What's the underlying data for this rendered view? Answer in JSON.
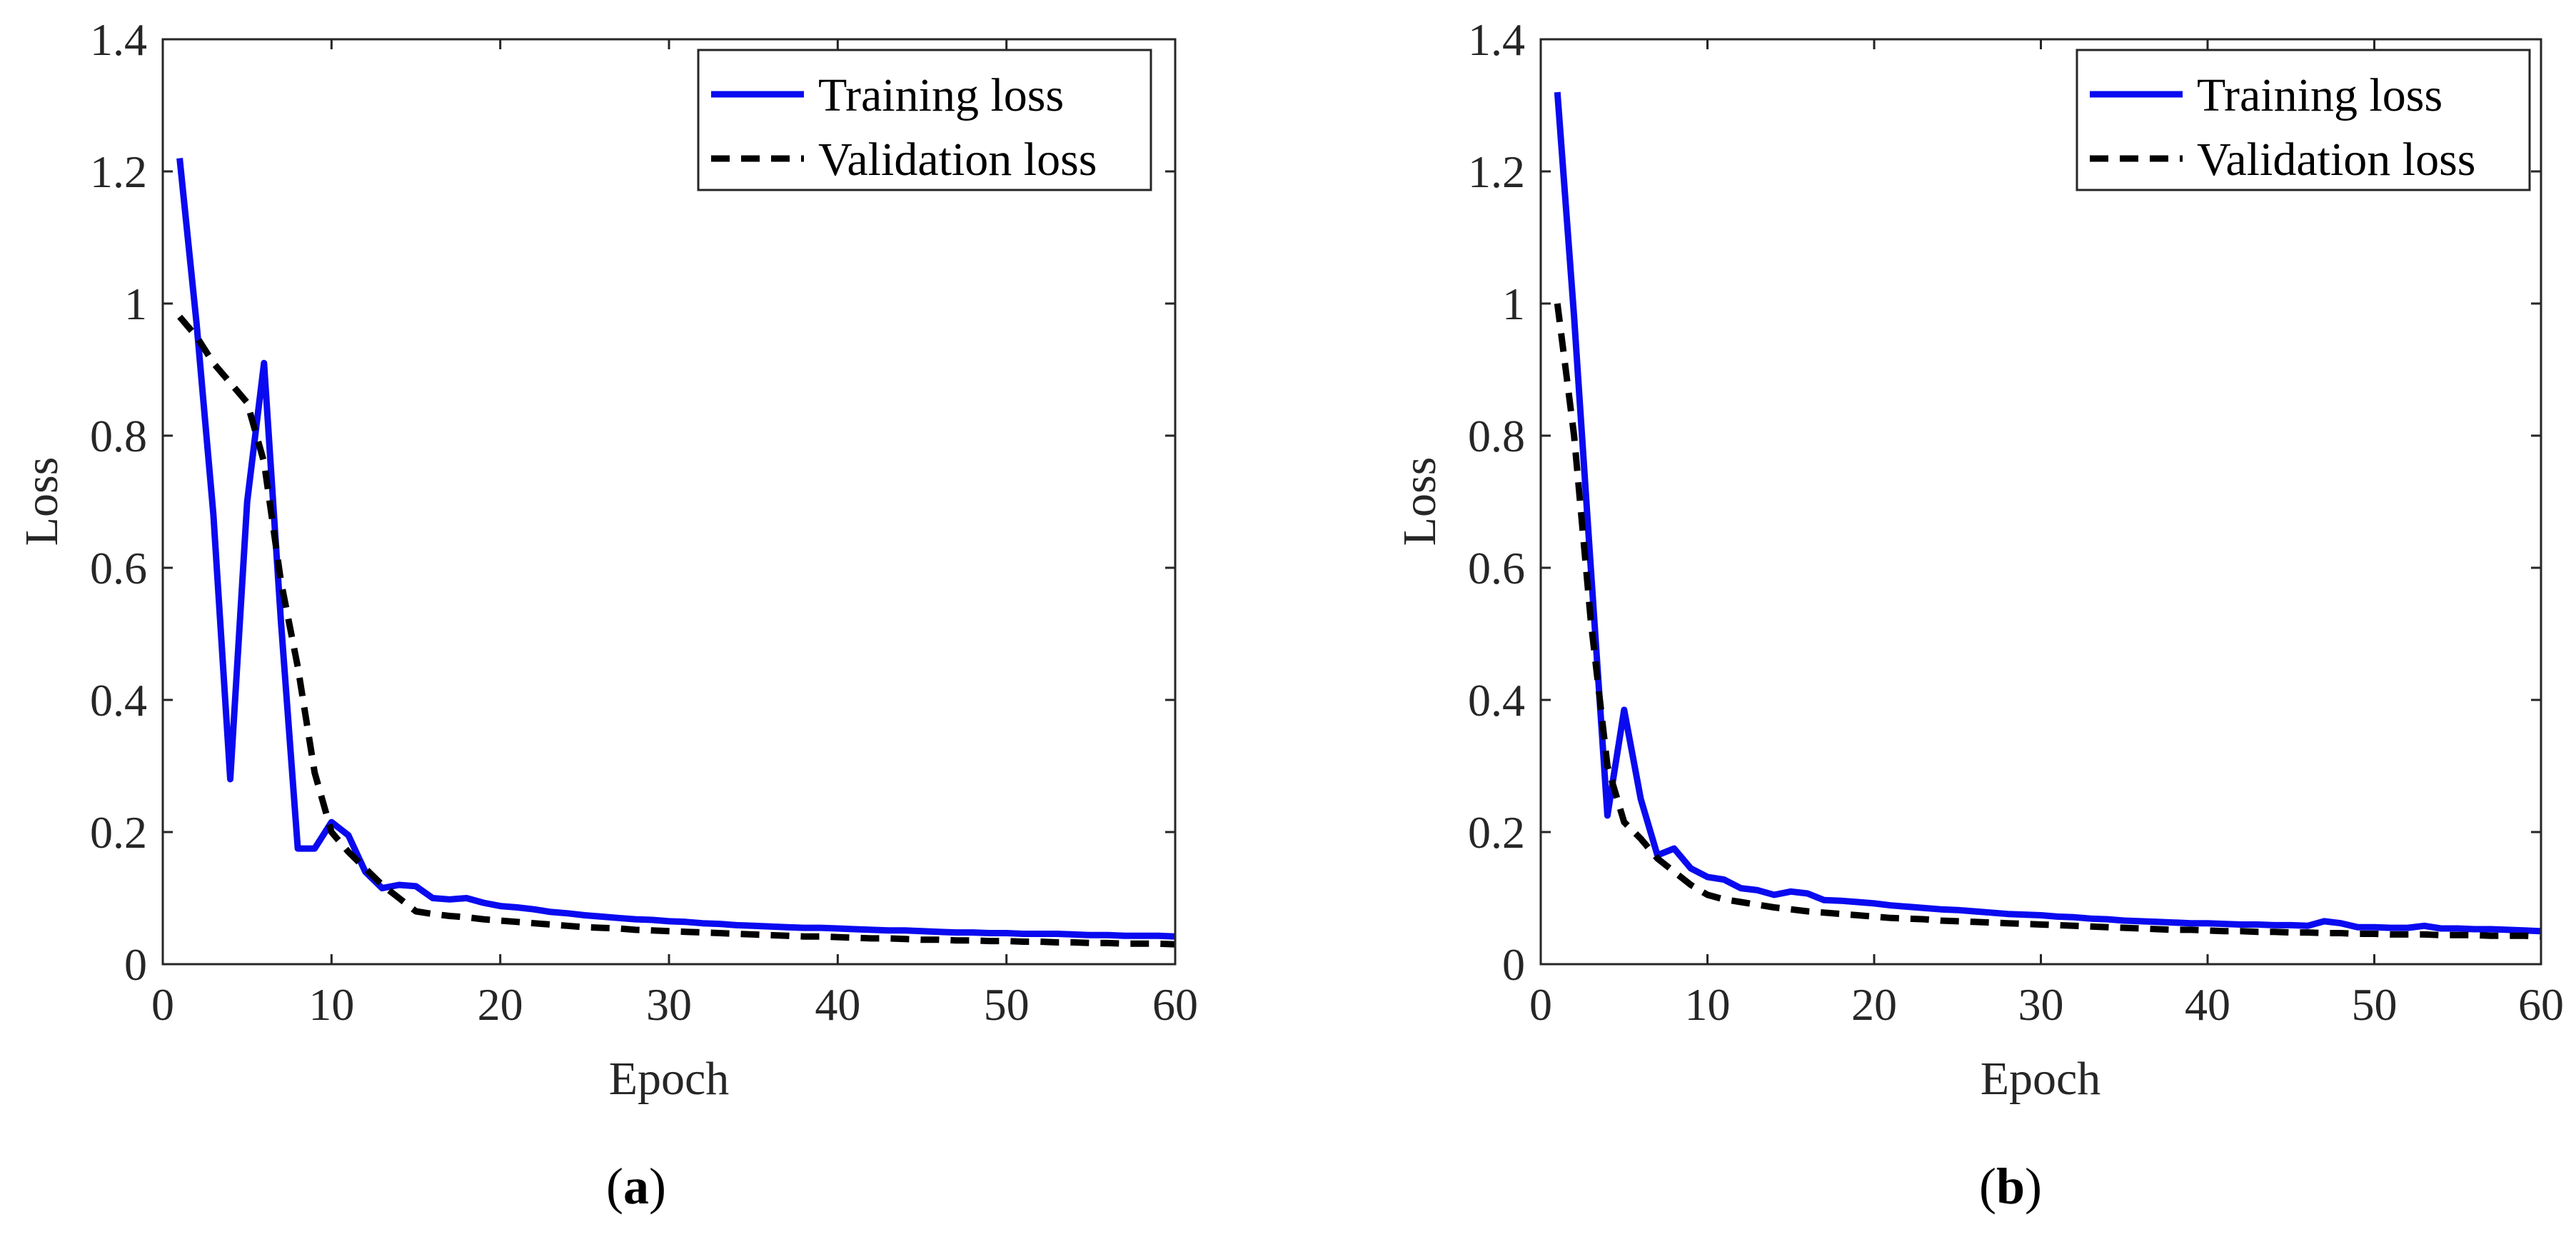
{
  "colors": {
    "training": "#0a0af0",
    "validation": "#000000",
    "axis": "#262626"
  },
  "chart_data": [
    {
      "type": "line",
      "panel": "a",
      "caption": {
        "open": "(",
        "letter": "a",
        "close": ")"
      },
      "xlabel": "Epoch",
      "ylabel": "Loss",
      "xlim": [
        0,
        60
      ],
      "ylim": [
        0,
        1.4
      ],
      "xticks": [
        0,
        10,
        20,
        30,
        40,
        50,
        60
      ],
      "xtick_labels": [
        "0",
        "10",
        "20",
        "30",
        "40",
        "50",
        "60"
      ],
      "yticks": [
        0,
        0.2,
        0.4,
        0.6,
        0.8,
        1.0,
        1.2,
        1.4
      ],
      "ytick_labels": [
        "0",
        "0.2",
        "0.4",
        "0.6",
        "0.8",
        "1",
        "1.2",
        "1.4"
      ],
      "grid": false,
      "legend": {
        "position": "top-right"
      },
      "series": [
        {
          "name": "Training loss",
          "style": "solid",
          "color": "#0a0af0",
          "x": [
            1,
            2,
            3,
            4,
            5,
            6,
            7,
            8,
            9,
            10,
            11,
            12,
            13,
            14,
            15,
            16,
            17,
            18,
            19,
            20,
            21,
            22,
            23,
            24,
            25,
            26,
            27,
            28,
            29,
            30,
            31,
            32,
            33,
            34,
            35,
            36,
            37,
            38,
            39,
            40,
            41,
            42,
            43,
            44,
            45,
            46,
            47,
            48,
            49,
            50,
            51,
            52,
            53,
            54,
            55,
            56,
            57,
            58,
            59,
            60
          ],
          "values": [
            1.22,
            0.97,
            0.68,
            0.28,
            0.7,
            0.91,
            0.52,
            0.175,
            0.175,
            0.215,
            0.195,
            0.14,
            0.115,
            0.12,
            0.118,
            0.1,
            0.098,
            0.1,
            0.093,
            0.088,
            0.086,
            0.083,
            0.079,
            0.077,
            0.074,
            0.072,
            0.07,
            0.068,
            0.067,
            0.065,
            0.064,
            0.062,
            0.061,
            0.059,
            0.058,
            0.057,
            0.056,
            0.055,
            0.055,
            0.054,
            0.053,
            0.052,
            0.051,
            0.051,
            0.05,
            0.049,
            0.048,
            0.048,
            0.047,
            0.047,
            0.046,
            0.046,
            0.046,
            0.045,
            0.044,
            0.044,
            0.043,
            0.043,
            0.043,
            0.042
          ]
        },
        {
          "name": "Validation loss",
          "style": "dashed",
          "color": "#000000",
          "x": [
            1,
            2,
            3,
            4,
            5,
            6,
            7,
            8,
            9,
            10,
            11,
            12,
            13,
            14,
            15,
            16,
            17,
            18,
            19,
            20,
            21,
            22,
            23,
            24,
            25,
            26,
            27,
            28,
            29,
            30,
            31,
            32,
            33,
            34,
            35,
            36,
            37,
            38,
            39,
            40,
            41,
            42,
            43,
            44,
            45,
            46,
            47,
            48,
            49,
            50,
            51,
            52,
            53,
            54,
            55,
            56,
            57,
            58,
            59,
            60
          ],
          "values": [
            0.98,
            0.95,
            0.91,
            0.88,
            0.85,
            0.76,
            0.58,
            0.45,
            0.29,
            0.2,
            0.17,
            0.145,
            0.12,
            0.1,
            0.08,
            0.076,
            0.073,
            0.071,
            0.068,
            0.066,
            0.064,
            0.062,
            0.06,
            0.058,
            0.056,
            0.055,
            0.054,
            0.052,
            0.051,
            0.05,
            0.049,
            0.048,
            0.047,
            0.046,
            0.045,
            0.044,
            0.043,
            0.042,
            0.042,
            0.041,
            0.04,
            0.039,
            0.039,
            0.038,
            0.037,
            0.037,
            0.036,
            0.036,
            0.035,
            0.035,
            0.034,
            0.034,
            0.033,
            0.033,
            0.032,
            0.032,
            0.031,
            0.031,
            0.031,
            0.03
          ]
        }
      ]
    },
    {
      "type": "line",
      "panel": "b",
      "caption": {
        "open": "(",
        "letter": "b",
        "close": ")"
      },
      "xlabel": "Epoch",
      "ylabel": "Loss",
      "xlim": [
        0,
        60
      ],
      "ylim": [
        0,
        1.4
      ],
      "xticks": [
        0,
        10,
        20,
        30,
        40,
        50,
        60
      ],
      "xtick_labels": [
        "0",
        "10",
        "20",
        "30",
        "40",
        "50",
        "60"
      ],
      "yticks": [
        0,
        0.2,
        0.4,
        0.6,
        0.8,
        1.0,
        1.2,
        1.4
      ],
      "ytick_labels": [
        "0",
        "0.2",
        "0.4",
        "0.6",
        "0.8",
        "1",
        "1.2",
        "1.4"
      ],
      "grid": false,
      "legend": {
        "position": "top-right"
      },
      "series": [
        {
          "name": "Training loss",
          "style": "solid",
          "color": "#0a0af0",
          "x": [
            1,
            2,
            3,
            4,
            5,
            6,
            7,
            8,
            9,
            10,
            11,
            12,
            13,
            14,
            15,
            16,
            17,
            18,
            19,
            20,
            21,
            22,
            23,
            24,
            25,
            26,
            27,
            28,
            29,
            30,
            31,
            32,
            33,
            34,
            35,
            36,
            37,
            38,
            39,
            40,
            41,
            42,
            43,
            44,
            45,
            46,
            47,
            48,
            49,
            50,
            51,
            52,
            53,
            54,
            55,
            56,
            57,
            58,
            59,
            60
          ],
          "values": [
            1.32,
            0.98,
            0.6,
            0.225,
            0.385,
            0.25,
            0.165,
            0.175,
            0.145,
            0.132,
            0.128,
            0.115,
            0.112,
            0.105,
            0.11,
            0.107,
            0.097,
            0.096,
            0.094,
            0.092,
            0.089,
            0.087,
            0.085,
            0.083,
            0.082,
            0.08,
            0.078,
            0.076,
            0.075,
            0.074,
            0.072,
            0.071,
            0.069,
            0.068,
            0.066,
            0.065,
            0.064,
            0.063,
            0.062,
            0.062,
            0.061,
            0.06,
            0.06,
            0.059,
            0.059,
            0.058,
            0.065,
            0.062,
            0.056,
            0.056,
            0.055,
            0.055,
            0.058,
            0.054,
            0.054,
            0.053,
            0.053,
            0.052,
            0.051,
            0.05
          ]
        },
        {
          "name": "Validation loss",
          "style": "dashed",
          "color": "#000000",
          "x": [
            1,
            2,
            3,
            4,
            5,
            6,
            7,
            8,
            9,
            10,
            11,
            12,
            13,
            14,
            15,
            16,
            17,
            18,
            19,
            20,
            21,
            22,
            23,
            24,
            25,
            26,
            27,
            28,
            29,
            30,
            31,
            32,
            33,
            34,
            35,
            36,
            37,
            38,
            39,
            40,
            41,
            42,
            43,
            44,
            45,
            46,
            47,
            48,
            49,
            50,
            51,
            52,
            53,
            54,
            55,
            56,
            57,
            58,
            59,
            60
          ],
          "values": [
            1.0,
            0.8,
            0.52,
            0.3,
            0.215,
            0.19,
            0.16,
            0.14,
            0.12,
            0.105,
            0.098,
            0.094,
            0.09,
            0.086,
            0.083,
            0.08,
            0.078,
            0.076,
            0.074,
            0.072,
            0.07,
            0.069,
            0.068,
            0.066,
            0.065,
            0.064,
            0.063,
            0.062,
            0.061,
            0.06,
            0.059,
            0.058,
            0.057,
            0.056,
            0.055,
            0.054,
            0.053,
            0.052,
            0.052,
            0.051,
            0.05,
            0.05,
            0.049,
            0.049,
            0.048,
            0.048,
            0.047,
            0.047,
            0.046,
            0.046,
            0.045,
            0.045,
            0.045,
            0.044,
            0.044,
            0.044,
            0.043,
            0.043,
            0.043,
            0.042
          ]
        }
      ]
    }
  ]
}
